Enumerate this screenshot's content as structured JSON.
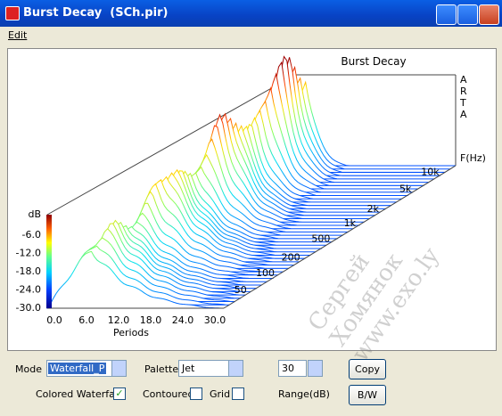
{
  "window": {
    "title": "Burst Decay  (SCh.pir)",
    "menu": [
      "Edit"
    ]
  },
  "plot": {
    "title": "Burst Decay",
    "brand": [
      "A",
      "R",
      "T",
      "A"
    ],
    "freq_label": "F(Hz)",
    "freq_ticks": [
      "10k",
      "5k",
      "2k",
      "1k",
      "500",
      "200",
      "100",
      "50"
    ],
    "db_label": "dB",
    "db_ticks": [
      "-6.0",
      "-12.0",
      "-18.0",
      "-24.0",
      "-30.0"
    ],
    "period_ticks": [
      "0.0",
      "6.0",
      "12.0",
      "18.0",
      "24.0",
      "30.0"
    ],
    "period_label": "Periods"
  },
  "controls": {
    "mode_label": "Mode",
    "mode_value": "Waterfall_P",
    "palette_label": "Palette",
    "palette_value": "Jet",
    "range_value": "30",
    "copy": "Copy",
    "bw": "B/W",
    "colored_waterfall": "Colored Waterfall",
    "contoured": "Contoured",
    "grid": "Grid",
    "range_label": "Range(dB)"
  },
  "watermark": [
    "Сергей Хомянок",
    "www.exo.ly"
  ]
}
